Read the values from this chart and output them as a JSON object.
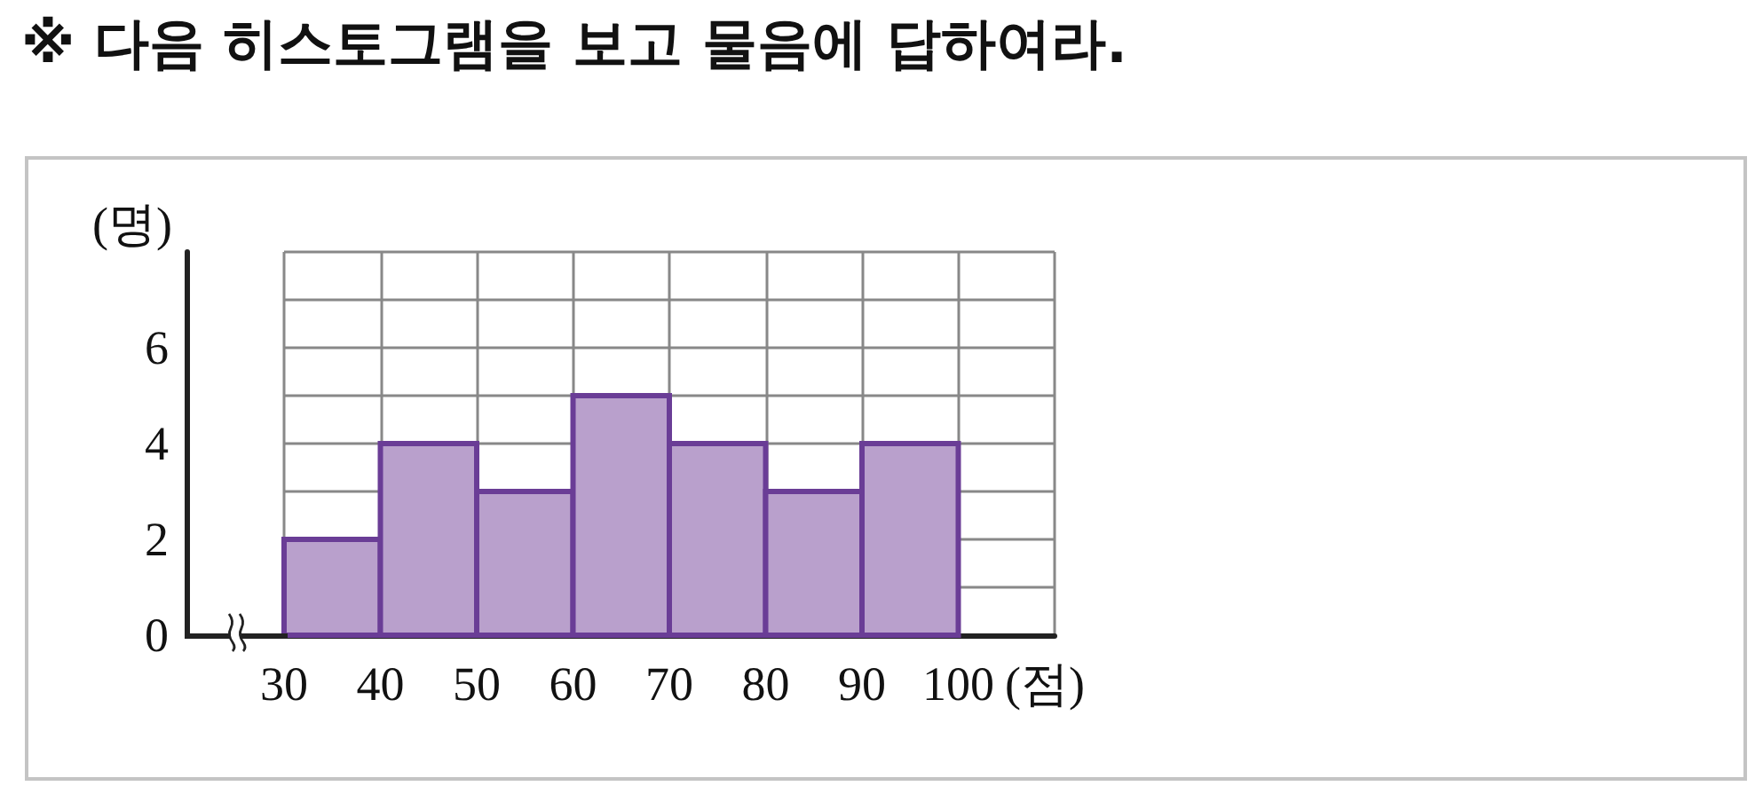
{
  "chart_data": {
    "type": "histogram",
    "title": "※ 다음 히스토그램을 보고 물음에 답하여라.",
    "xlabel": "(점)",
    "ylabel": "(명)",
    "bins": [
      30,
      40,
      50,
      60,
      70,
      80,
      90,
      100
    ],
    "values": [
      2,
      4,
      3,
      5,
      4,
      3,
      4
    ],
    "color": "#b9a0cc",
    "xlim": [
      30,
      110
    ],
    "xticks": [
      30,
      40,
      50,
      60,
      70,
      80,
      90,
      100,
      {
        "value": 110,
        "label": null
      }
    ],
    "ylim": [
      0,
      8
    ],
    "yticks": [
      0,
      {
        "value": 1,
        "label": null
      },
      2,
      {
        "value": 3,
        "label": null
      },
      4,
      {
        "value": 5,
        "label": null
      },
      6,
      {
        "value": 7,
        "label": null
      }
    ],
    "grid": true
  }
}
